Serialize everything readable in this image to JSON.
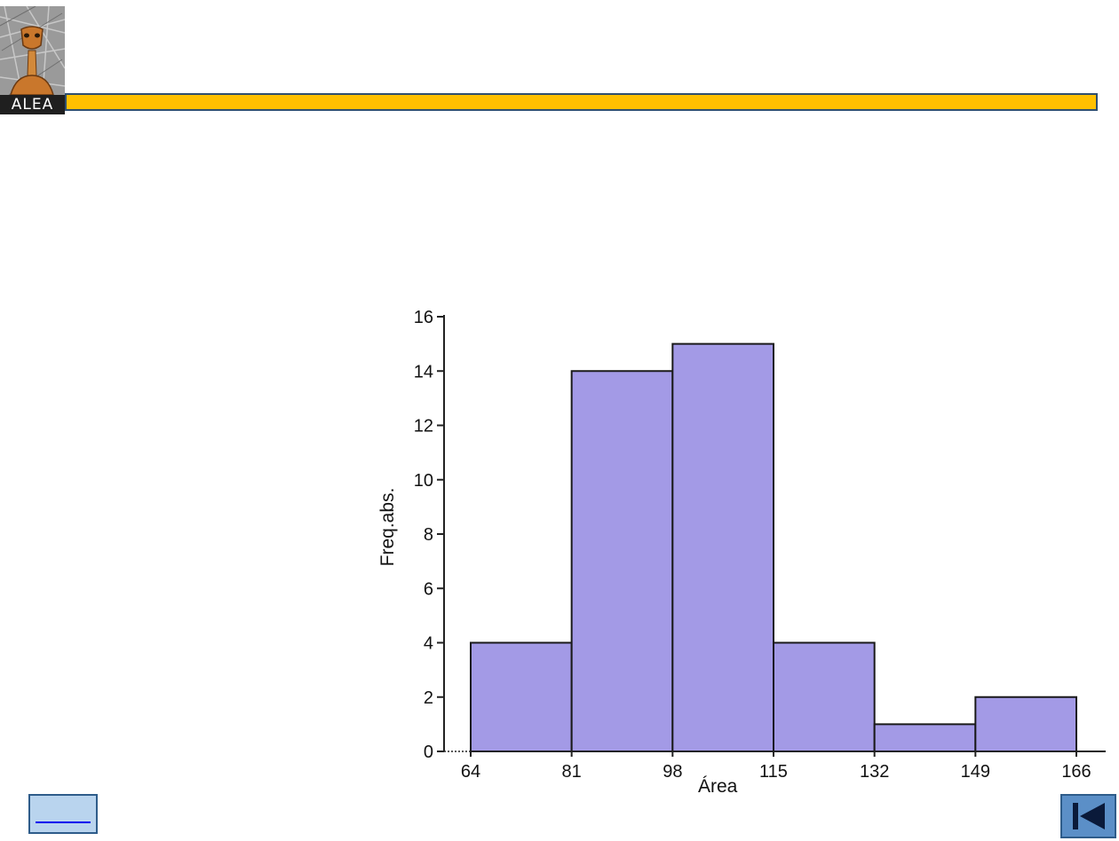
{
  "logo": {
    "text": "ALEA"
  },
  "colors": {
    "accent_bar": "#ffc000",
    "bar_fill": "#a39ae6",
    "bar_stroke": "#1a1a1a",
    "nav_button": "#5b8fc7"
  },
  "nav": {
    "home_icon": "home-icon",
    "back_icon": "skip-back-icon"
  },
  "chart_data": {
    "type": "bar",
    "histogram": true,
    "bin_edges": [
      64,
      81,
      98,
      115,
      132,
      149,
      166
    ],
    "values": [
      4,
      14,
      15,
      4,
      1,
      2
    ],
    "x_ticks": [
      "64",
      "81",
      "98",
      "115",
      "132",
      "149",
      "166"
    ],
    "y_ticks": [
      "0",
      "2",
      "4",
      "6",
      "8",
      "10",
      "12",
      "14",
      "16"
    ],
    "xlabel": "Área",
    "ylabel": "Freq.abs.",
    "xlim": [
      64,
      166
    ],
    "ylim": [
      0,
      16
    ],
    "grid": false
  }
}
